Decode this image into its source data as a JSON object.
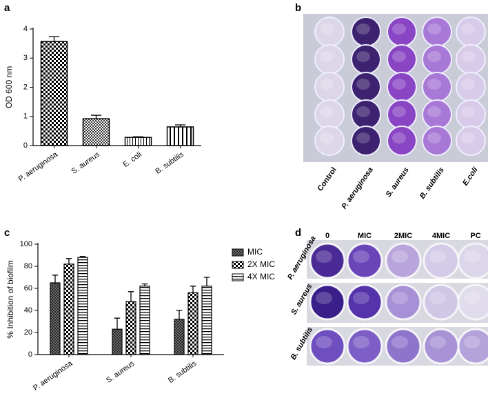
{
  "panel_labels": [
    "a",
    "b",
    "c",
    "d"
  ],
  "photo_b": {
    "labels": [
      "Control",
      "P. aeruginosa",
      "S. aureus",
      "B. subtilis",
      "E.coli"
    ]
  },
  "photo_d": {
    "columns": [
      "0",
      "MIC",
      "2MIC",
      "4MIC",
      "PC"
    ],
    "rows": [
      "P. aeruginosa",
      "S. aureus",
      "B. subtilis"
    ]
  },
  "chart_data": [
    {
      "type": "bar",
      "y_label": "OD 600 nm",
      "categories": [
        "P. aeruginosa",
        "S. aureus",
        "E. coli",
        "B. subtilis"
      ],
      "values": [
        3.57,
        0.92,
        0.28,
        0.64
      ],
      "errors": [
        0.17,
        0.12,
        0.02,
        0.07
      ],
      "ylim": [
        0,
        4
      ],
      "yticks": [
        0,
        1,
        2,
        3,
        4
      ],
      "color": "#000000"
    },
    {
      "type": "grouped_bar",
      "y_label": "% Inhibition of biofilm",
      "categories": [
        "P. aeruginosa",
        "S. aureus",
        "B. subtilis"
      ],
      "series": [
        {
          "name": "MIC",
          "color": "#000000",
          "values": [
            65,
            23,
            32
          ],
          "errors": [
            7,
            10,
            8
          ]
        },
        {
          "name": "2X MIC",
          "color": "#000000",
          "values": [
            82,
            48,
            56
          ],
          "errors": [
            5,
            9,
            6
          ]
        },
        {
          "name": "4X MIC",
          "color": "#000000",
          "values": [
            88,
            62,
            62
          ],
          "errors": [
            1,
            2,
            8
          ]
        }
      ],
      "ylim": [
        0,
        100
      ],
      "yticks": [
        0,
        20,
        40,
        60,
        80,
        100
      ],
      "legend": "right"
    }
  ]
}
